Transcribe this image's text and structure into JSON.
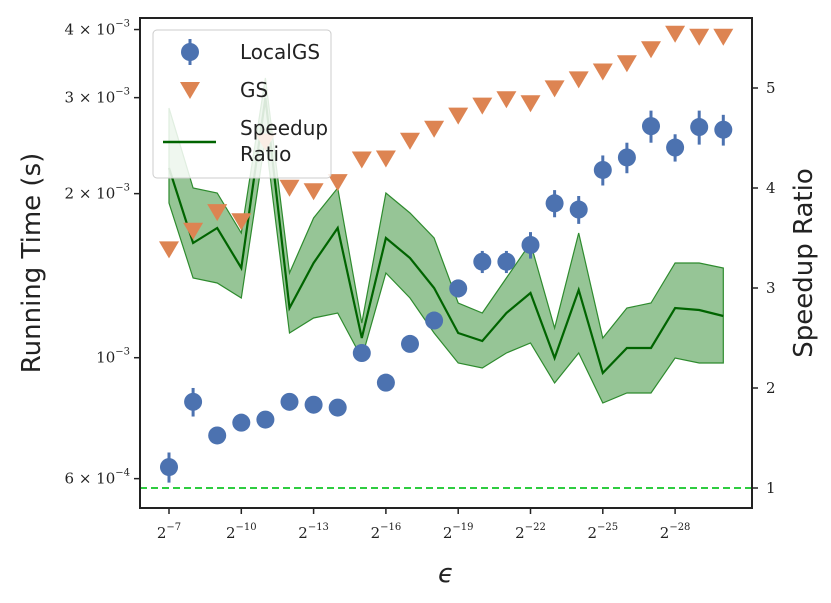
{
  "chart_data": {
    "type": "scatter",
    "xlabel": "ϵ",
    "ylabel_left": "Running Time (s)",
    "ylabel_right": "Speedup Ratio",
    "y_left_scale": "log",
    "ylim_left": [
      0.00053,
      0.0042
    ],
    "ylim_right": [
      0.8,
      5.7
    ],
    "x_exponents": [
      -7,
      -8,
      -9,
      -10,
      -11,
      -12,
      -13,
      -14,
      -15,
      -16,
      -17,
      -18,
      -19,
      -20,
      -21,
      -22,
      -23,
      -24,
      -25,
      -26,
      -27,
      -28,
      -29,
      -30
    ],
    "x_tick_base": "2",
    "x_ticks": [
      "-7",
      "-10",
      "-13",
      "-16",
      "-19",
      "-22",
      "-25",
      "-28"
    ],
    "y_left_ticks": [
      {
        "mantissa": "6",
        "exp": "-4",
        "value": 0.0006
      },
      {
        "mantissa": "",
        "exp": "-3",
        "value": 0.001
      },
      {
        "mantissa": "2",
        "exp": "-3",
        "value": 0.002
      },
      {
        "mantissa": "3",
        "exp": "-3",
        "value": 0.003
      },
      {
        "mantissa": "4",
        "exp": "-3",
        "value": 0.004
      }
    ],
    "y_right_ticks": [
      "1",
      "2",
      "3",
      "4",
      "5"
    ],
    "legend_position": "upper-left",
    "series": [
      {
        "name": "LocalGS",
        "kind": "errorbar",
        "color": "#4c72b0",
        "values": [
          0.00063,
          0.00083,
          0.00072,
          0.00076,
          0.00077,
          0.00083,
          0.00082,
          0.00081,
          0.00102,
          0.0009,
          0.00106,
          0.00117,
          0.00134,
          0.0015,
          0.0015,
          0.00161,
          0.00192,
          0.00187,
          0.00221,
          0.00233,
          0.00266,
          0.00243,
          0.00265,
          0.00262
        ],
        "err": [
          4e-05,
          5e-05,
          2e-05,
          2e-05,
          2e-05,
          2e-05,
          2e-05,
          2e-05,
          2e-05,
          2e-05,
          3e-05,
          4e-05,
          5e-05,
          7e-05,
          7e-05,
          9e-05,
          0.00011,
          0.00011,
          0.00014,
          0.00015,
          0.00018,
          0.00014,
          0.00019,
          0.00017
        ]
      },
      {
        "name": "GS",
        "kind": "marker",
        "color": "#dd8452",
        "values": [
          0.00158,
          0.00171,
          0.00185,
          0.00178,
          0.00249,
          0.00205,
          0.00202,
          0.0021,
          0.00231,
          0.00232,
          0.0025,
          0.00263,
          0.00278,
          0.0029,
          0.00298,
          0.00293,
          0.00312,
          0.00324,
          0.00335,
          0.00347,
          0.00368,
          0.00393,
          0.00388,
          0.00388
        ]
      },
      {
        "name": "Speedup\nRatio",
        "legend_lines": [
          "Speedup",
          "Ratio"
        ],
        "kind": "line",
        "axis": "right",
        "color": "#006400",
        "fill_color": "#2e8b2e",
        "values": [
          4.2,
          3.45,
          3.6,
          3.2,
          4.9,
          2.8,
          3.25,
          3.6,
          2.5,
          3.5,
          3.3,
          3.0,
          2.55,
          2.47,
          2.75,
          2.95,
          2.3,
          2.98,
          2.15,
          2.4,
          2.4,
          2.8,
          2.78,
          2.72
        ],
        "lower": [
          3.85,
          3.1,
          3.05,
          2.9,
          4.5,
          2.55,
          2.7,
          2.75,
          2.3,
          3.15,
          2.9,
          2.55,
          2.25,
          2.2,
          2.35,
          2.45,
          2.05,
          2.35,
          1.85,
          1.95,
          1.95,
          2.3,
          2.25,
          2.25
        ],
        "upper": [
          4.8,
          4.0,
          3.95,
          3.55,
          5.1,
          3.15,
          3.7,
          4.0,
          2.65,
          3.95,
          3.75,
          3.5,
          2.85,
          2.75,
          3.1,
          3.45,
          2.6,
          3.55,
          2.5,
          2.8,
          2.85,
          3.25,
          3.25,
          3.2
        ]
      }
    ],
    "baseline": {
      "value": 1,
      "axis": "right",
      "style": "dashed",
      "color": "#2ecc40"
    }
  }
}
